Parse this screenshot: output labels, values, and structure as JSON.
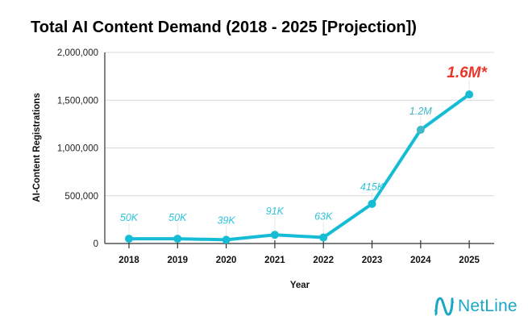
{
  "chart_data": {
    "type": "line",
    "title": "Total AI Content Demand (2018 - 2025 [Projection])",
    "xlabel": "Year",
    "ylabel": "AI-Content Registrations",
    "categories": [
      "2018",
      "2019",
      "2020",
      "2021",
      "2022",
      "2023",
      "2024",
      "2025"
    ],
    "series": [
      {
        "name": "AI-Content Registrations",
        "values": [
          50000,
          50000,
          39000,
          91000,
          63000,
          415000,
          1190000,
          1560000
        ],
        "data_labels": [
          "50K",
          "50K",
          "39K",
          "91K",
          "63K",
          "415K",
          "1.2M",
          "1.6M*"
        ],
        "color": "#16bcd6"
      }
    ],
    "highlight_index": 7,
    "highlight_color": "#e8372b",
    "alt_point_index": 6,
    "alt_point_color": "#3fb8c4",
    "label_color": "#2ec3dc",
    "ylim": [
      0,
      2000000
    ],
    "yticks": [
      0,
      500000,
      1000000,
      1500000,
      2000000
    ],
    "ytick_labels": [
      "0",
      "500,000",
      "1,000,000",
      "1,500,000",
      "2,000,000"
    ],
    "grid": true,
    "legend": "none"
  },
  "brand": {
    "name": "NetLine",
    "color": "#1aa7c4"
  }
}
